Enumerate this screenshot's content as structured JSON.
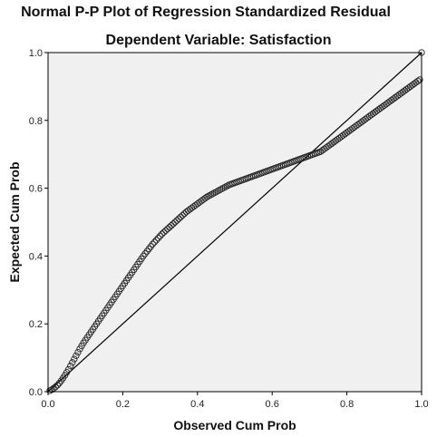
{
  "chart_data": {
    "type": "scatter",
    "title": "Normal P-P Plot of Regression Standardized Residual",
    "subtitle": "Dependent Variable: Satisfaction",
    "xlabel": "Observed Cum Prob",
    "ylabel": "Expected Cum Prob",
    "xlim": [
      0,
      1
    ],
    "ylim": [
      0,
      1
    ],
    "x_ticks": [
      "0.0",
      "0.2",
      "0.4",
      "0.6",
      "0.8",
      "1.0"
    ],
    "y_ticks": [
      "0.0",
      "0.2",
      "0.4",
      "0.6",
      "0.8",
      "1.0"
    ],
    "grid": false,
    "reference_line": [
      [
        0,
        0
      ],
      [
        1,
        1
      ]
    ],
    "colors": {
      "plot_background": "#f0f0f0",
      "marker_stroke": "#222222",
      "line": "#000000"
    },
    "points": [
      [
        0.005,
        0.003
      ],
      [
        0.01,
        0.006
      ],
      [
        0.015,
        0.01
      ],
      [
        0.02,
        0.014
      ],
      [
        0.025,
        0.019
      ],
      [
        0.03,
        0.025
      ],
      [
        0.035,
        0.032
      ],
      [
        0.04,
        0.04
      ],
      [
        0.045,
        0.048
      ],
      [
        0.05,
        0.057
      ],
      [
        0.055,
        0.066
      ],
      [
        0.06,
        0.076
      ],
      [
        0.065,
        0.086
      ],
      [
        0.07,
        0.096
      ],
      [
        0.075,
        0.106
      ],
      [
        0.08,
        0.116
      ],
      [
        0.085,
        0.126
      ],
      [
        0.09,
        0.135
      ],
      [
        0.095,
        0.144
      ],
      [
        0.1,
        0.152
      ],
      [
        0.105,
        0.16
      ],
      [
        0.11,
        0.168
      ],
      [
        0.115,
        0.176
      ],
      [
        0.12,
        0.184
      ],
      [
        0.125,
        0.192
      ],
      [
        0.13,
        0.2
      ],
      [
        0.135,
        0.208
      ],
      [
        0.14,
        0.216
      ],
      [
        0.145,
        0.224
      ],
      [
        0.15,
        0.232
      ],
      [
        0.155,
        0.24
      ],
      [
        0.16,
        0.248
      ],
      [
        0.165,
        0.256
      ],
      [
        0.17,
        0.264
      ],
      [
        0.175,
        0.272
      ],
      [
        0.18,
        0.28
      ],
      [
        0.185,
        0.288
      ],
      [
        0.19,
        0.296
      ],
      [
        0.195,
        0.304
      ],
      [
        0.2,
        0.312
      ],
      [
        0.205,
        0.32
      ],
      [
        0.21,
        0.328
      ],
      [
        0.215,
        0.336
      ],
      [
        0.22,
        0.344
      ],
      [
        0.225,
        0.352
      ],
      [
        0.23,
        0.36
      ],
      [
        0.235,
        0.368
      ],
      [
        0.24,
        0.376
      ],
      [
        0.245,
        0.384
      ],
      [
        0.25,
        0.392
      ],
      [
        0.255,
        0.4
      ],
      [
        0.26,
        0.407
      ],
      [
        0.265,
        0.414
      ],
      [
        0.27,
        0.421
      ],
      [
        0.275,
        0.428
      ],
      [
        0.28,
        0.435
      ],
      [
        0.285,
        0.441
      ],
      [
        0.29,
        0.447
      ],
      [
        0.295,
        0.453
      ],
      [
        0.3,
        0.459
      ],
      [
        0.305,
        0.465
      ],
      [
        0.31,
        0.47
      ],
      [
        0.315,
        0.475
      ],
      [
        0.32,
        0.48
      ],
      [
        0.325,
        0.485
      ],
      [
        0.33,
        0.49
      ],
      [
        0.335,
        0.495
      ],
      [
        0.34,
        0.5
      ],
      [
        0.345,
        0.505
      ],
      [
        0.35,
        0.51
      ],
      [
        0.355,
        0.515
      ],
      [
        0.36,
        0.52
      ],
      [
        0.365,
        0.525
      ],
      [
        0.37,
        0.53
      ],
      [
        0.375,
        0.534
      ],
      [
        0.38,
        0.538
      ],
      [
        0.385,
        0.542
      ],
      [
        0.39,
        0.546
      ],
      [
        0.395,
        0.55
      ],
      [
        0.4,
        0.554
      ],
      [
        0.405,
        0.558
      ],
      [
        0.41,
        0.562
      ],
      [
        0.415,
        0.566
      ],
      [
        0.42,
        0.57
      ],
      [
        0.425,
        0.574
      ],
      [
        0.43,
        0.577
      ],
      [
        0.435,
        0.58
      ],
      [
        0.44,
        0.583
      ],
      [
        0.445,
        0.586
      ],
      [
        0.45,
        0.589
      ],
      [
        0.455,
        0.592
      ],
      [
        0.46,
        0.595
      ],
      [
        0.465,
        0.598
      ],
      [
        0.47,
        0.601
      ],
      [
        0.475,
        0.604
      ],
      [
        0.48,
        0.607
      ],
      [
        0.485,
        0.61
      ],
      [
        0.49,
        0.612
      ],
      [
        0.495,
        0.614
      ],
      [
        0.5,
        0.616
      ],
      [
        0.505,
        0.618
      ],
      [
        0.51,
        0.62
      ],
      [
        0.515,
        0.622
      ],
      [
        0.52,
        0.624
      ],
      [
        0.525,
        0.626
      ],
      [
        0.53,
        0.628
      ],
      [
        0.535,
        0.63
      ],
      [
        0.54,
        0.632
      ],
      [
        0.545,
        0.634
      ],
      [
        0.55,
        0.636
      ],
      [
        0.555,
        0.638
      ],
      [
        0.56,
        0.64
      ],
      [
        0.565,
        0.642
      ],
      [
        0.57,
        0.644
      ],
      [
        0.575,
        0.646
      ],
      [
        0.58,
        0.648
      ],
      [
        0.585,
        0.65
      ],
      [
        0.59,
        0.652
      ],
      [
        0.595,
        0.654
      ],
      [
        0.6,
        0.656
      ],
      [
        0.605,
        0.658
      ],
      [
        0.61,
        0.66
      ],
      [
        0.615,
        0.662
      ],
      [
        0.62,
        0.664
      ],
      [
        0.625,
        0.666
      ],
      [
        0.63,
        0.668
      ],
      [
        0.635,
        0.67
      ],
      [
        0.64,
        0.672
      ],
      [
        0.645,
        0.674
      ],
      [
        0.65,
        0.676
      ],
      [
        0.655,
        0.678
      ],
      [
        0.66,
        0.68
      ],
      [
        0.665,
        0.682
      ],
      [
        0.67,
        0.684
      ],
      [
        0.675,
        0.686
      ],
      [
        0.68,
        0.688
      ],
      [
        0.685,
        0.69
      ],
      [
        0.69,
        0.692
      ],
      [
        0.695,
        0.694
      ],
      [
        0.7,
        0.696
      ],
      [
        0.705,
        0.698
      ],
      [
        0.71,
        0.7
      ],
      [
        0.715,
        0.702
      ],
      [
        0.72,
        0.704
      ],
      [
        0.725,
        0.706
      ],
      [
        0.73,
        0.708
      ],
      [
        0.735,
        0.712
      ],
      [
        0.74,
        0.716
      ],
      [
        0.745,
        0.72
      ],
      [
        0.75,
        0.724
      ],
      [
        0.755,
        0.728
      ],
      [
        0.76,
        0.732
      ],
      [
        0.765,
        0.736
      ],
      [
        0.77,
        0.74
      ],
      [
        0.775,
        0.744
      ],
      [
        0.78,
        0.748
      ],
      [
        0.785,
        0.752
      ],
      [
        0.79,
        0.756
      ],
      [
        0.795,
        0.76
      ],
      [
        0.8,
        0.764
      ],
      [
        0.805,
        0.768
      ],
      [
        0.81,
        0.772
      ],
      [
        0.815,
        0.776
      ],
      [
        0.82,
        0.78
      ],
      [
        0.825,
        0.784
      ],
      [
        0.83,
        0.788
      ],
      [
        0.835,
        0.792
      ],
      [
        0.84,
        0.796
      ],
      [
        0.845,
        0.8
      ],
      [
        0.85,
        0.804
      ],
      [
        0.855,
        0.808
      ],
      [
        0.86,
        0.812
      ],
      [
        0.865,
        0.816
      ],
      [
        0.87,
        0.82
      ],
      [
        0.875,
        0.824
      ],
      [
        0.88,
        0.828
      ],
      [
        0.885,
        0.832
      ],
      [
        0.89,
        0.836
      ],
      [
        0.895,
        0.84
      ],
      [
        0.9,
        0.844
      ],
      [
        0.905,
        0.848
      ],
      [
        0.91,
        0.852
      ],
      [
        0.915,
        0.856
      ],
      [
        0.92,
        0.86
      ],
      [
        0.925,
        0.864
      ],
      [
        0.93,
        0.868
      ],
      [
        0.935,
        0.872
      ],
      [
        0.94,
        0.876
      ],
      [
        0.945,
        0.88
      ],
      [
        0.95,
        0.884
      ],
      [
        0.955,
        0.888
      ],
      [
        0.96,
        0.892
      ],
      [
        0.965,
        0.896
      ],
      [
        0.97,
        0.9
      ],
      [
        0.975,
        0.904
      ],
      [
        0.98,
        0.908
      ],
      [
        0.985,
        0.912
      ],
      [
        0.99,
        0.916
      ],
      [
        0.995,
        0.92
      ],
      [
        1.0,
        1.0
      ]
    ]
  }
}
